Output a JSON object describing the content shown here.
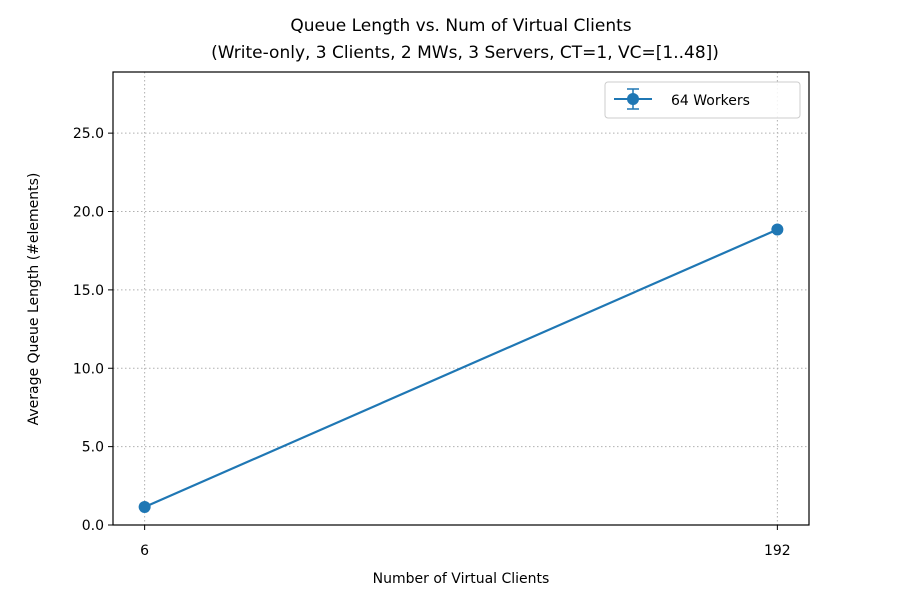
{
  "chart_data": {
    "type": "line",
    "title": "Queue Length vs. Num of Virtual Clients",
    "subtitle": "(Write-only, 3 Clients, 2 MWs, 3 Servers, CT=1, VC=[1..48])",
    "xlabel": "Number of Virtual Clients",
    "ylabel": "Average Queue Length (#elements)",
    "x_ticks": [
      6,
      192
    ],
    "x_tick_labels": [
      "6",
      "192"
    ],
    "xlim": [
      -3.3,
      201.3
    ],
    "y_ticks": [
      0,
      5,
      10,
      15,
      20,
      25
    ],
    "y_tick_labels": [
      "0.0",
      "5.0",
      "10.0",
      "15.0",
      "20.0",
      "25.0"
    ],
    "ylim": [
      0,
      28.9
    ],
    "grid": true,
    "legend_position": "top-right",
    "series": [
      {
        "name": "64 Workers",
        "color": "#1f77b4",
        "marker": "circle",
        "error_bars": true,
        "x": [
          6,
          192
        ],
        "y": [
          1.15,
          18.85
        ]
      }
    ]
  }
}
